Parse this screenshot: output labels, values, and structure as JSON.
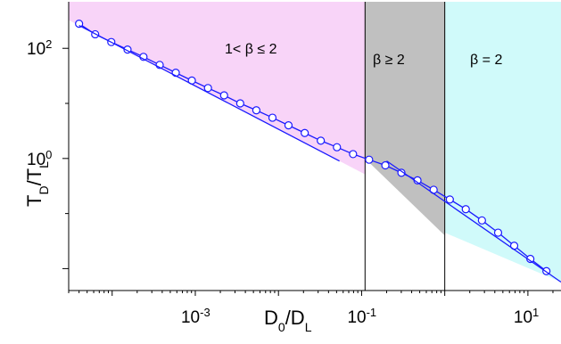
{
  "chart_data": {
    "type": "scatter",
    "xlabel": "D_0/D_L",
    "ylabel": "T_D/T_L",
    "x_scale": "log",
    "y_scale": "log",
    "xlim": [
      3e-05,
      25
    ],
    "ylim": [
      0.004,
      700
    ],
    "x_ticks": [
      {
        "value": 0.001,
        "mantissa": "10",
        "exponent": "-3"
      },
      {
        "value": 0.1,
        "mantissa": "10",
        "exponent": "-1"
      },
      {
        "value": 10,
        "mantissa": "10",
        "exponent": "1"
      }
    ],
    "y_ticks": [
      {
        "value": 100,
        "mantissa": "10",
        "exponent": "2"
      },
      {
        "value": 1,
        "mantissa": "10",
        "exponent": "0"
      }
    ],
    "grid": false,
    "regions": [
      {
        "label": "1< β ≤ 2",
        "x_from": 3e-05,
        "x_to": 0.11,
        "color": "#f8d4f8"
      },
      {
        "label": "β ≥ 2",
        "x_from": 0.11,
        "x_to": 1.0,
        "color": "#c0c0c0"
      },
      {
        "label": "β =  2",
        "x_from": 1.0,
        "x_to": 25,
        "color": "#d0fafa"
      }
    ],
    "boundary_lines_x": [
      0.11,
      1.0
    ],
    "series": [
      {
        "kind": "points",
        "color": "#1a1aff",
        "x": [
          4e-05,
          6.25e-05,
          9.76e-05,
          0.000153,
          0.000238,
          0.000373,
          0.000582,
          0.000909,
          0.00142,
          0.00222,
          0.00347,
          0.00542,
          0.00847,
          0.0132,
          0.0207,
          0.0323,
          0.0505,
          0.0789,
          0.123,
          0.193,
          0.301,
          0.47,
          0.735,
          1.15,
          1.79,
          2.8,
          4.38,
          6.84,
          10.7,
          16.7
        ],
        "y": [
          280,
          180,
          130,
          95,
          70,
          50,
          36,
          26,
          19,
          14,
          10,
          7.5,
          5.5,
          4,
          2.9,
          2.1,
          1.6,
          1.2,
          0.95,
          0.75,
          0.55,
          0.4,
          0.27,
          0.18,
          0.12,
          0.075,
          0.045,
          0.026,
          0.015,
          0.009
        ]
      },
      {
        "kind": "line",
        "color": "#1a1aff",
        "x": [
          4e-05,
          0.0542
        ],
        "y": [
          260,
          0.9
        ]
      },
      {
        "kind": "line",
        "color": "#1a1aff",
        "x": [
          0.2,
          25
        ],
        "y": [
          0.9,
          0.0057
        ]
      }
    ]
  }
}
